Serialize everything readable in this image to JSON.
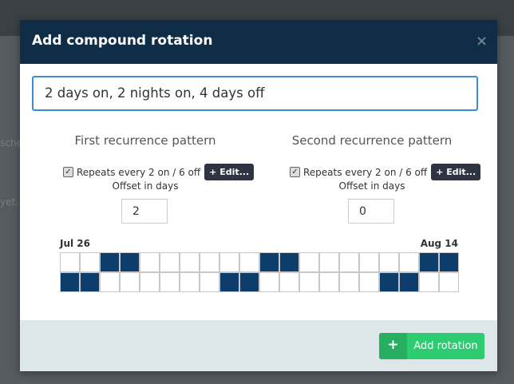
{
  "background": {
    "fragments": [
      "sche",
      "yet. C"
    ]
  },
  "header": {
    "title": "Add compound rotation",
    "close": "×"
  },
  "name_input": {
    "value": "2 days on, 2 nights on, 4 days off"
  },
  "patterns": [
    {
      "title": "First recurrence pattern",
      "repeats_label": "Repeats every 2 on / 6 off",
      "edit_button": "+ Edit...",
      "offset_label": "Offset in days",
      "offset_value": "2"
    },
    {
      "title": "Second recurrence pattern",
      "repeats_label": "Repeats every 2 on / 6 off",
      "edit_button": "+ Edit...",
      "offset_label": "Offset in days",
      "offset_value": "0"
    }
  ],
  "calendar": {
    "start_label": "Jul 26",
    "end_label": "Aug 14",
    "rows": [
      [
        0,
        0,
        1,
        1,
        0,
        0,
        0,
        0,
        0,
        0,
        1,
        1,
        0,
        0,
        0,
        0,
        0,
        0,
        1,
        1
      ],
      [
        1,
        1,
        0,
        0,
        0,
        0,
        0,
        0,
        1,
        1,
        0,
        0,
        0,
        0,
        0,
        0,
        1,
        1,
        0,
        0
      ]
    ]
  },
  "footer": {
    "button_icon": "+",
    "button_label": "Add rotation"
  }
}
